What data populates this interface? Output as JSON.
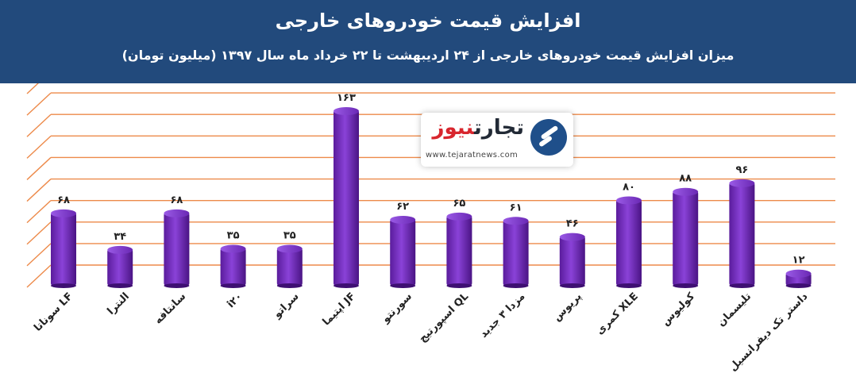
{
  "header": {
    "title": "افزایش قیمت خودروهای خارجی",
    "subtitle": "میزان افزایش قیمت خودروهای خارجی از ۲۴ اردیبهشت تا ۲۲ خرداد ماه سال ۱۳۹۷ (میلیون تومان)"
  },
  "logo": {
    "name_part1": "تجارت",
    "name_part2": "نیوز",
    "url": "www.tejaratnews.com"
  },
  "colors": {
    "header_bg": "#224a7c",
    "bar": "#7a30c6",
    "grid": "#ed8a4a"
  },
  "chart_data": {
    "type": "bar",
    "categories": [
      "سوناتا LF",
      "النترا",
      "سانتافه",
      "i۲۰",
      "سراتو",
      "اپتیما JF",
      "سورنتو",
      "اسپورتیج QL",
      "مزدا ۳ جدید",
      "پریوس",
      "کمری XLE",
      "کولیوس",
      "تلیسمان",
      "داستر تک دیفرانسیل"
    ],
    "values": [
      68,
      34,
      68,
      35,
      35,
      163,
      62,
      65,
      61,
      46,
      80,
      88,
      96,
      12
    ],
    "value_labels": [
      "۶۸",
      "۳۴",
      "۶۸",
      "۳۵",
      "۳۵",
      "۱۶۳",
      "۶۲",
      "۶۵",
      "۶۱",
      "۴۶",
      "۸۰",
      "۸۸",
      "۹۶",
      "۱۲"
    ],
    "ylim": [
      0,
      180
    ],
    "grid": true,
    "legend": "none"
  }
}
